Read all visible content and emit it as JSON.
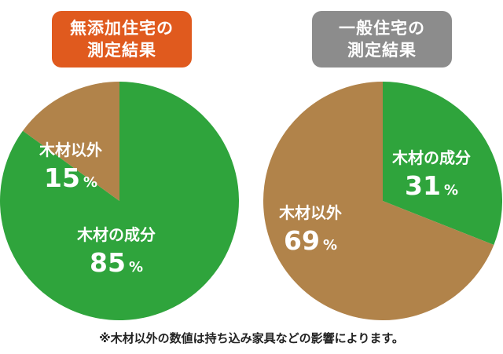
{
  "colors": {
    "wood": "#2fa43c",
    "non_wood": "#b1834a",
    "title_left_bg": "#e05a1e",
    "title_right_bg": "#8c8c8c",
    "label_text": "#ffffff"
  },
  "chart_data": [
    {
      "type": "pie",
      "title_line1": "無添加住宅の",
      "title_line2": "測定結果",
      "slices": [
        {
          "name": "木材の成分",
          "value": 85,
          "value_label": "85",
          "unit": "%",
          "color": "#2fa43c"
        },
        {
          "name": "木材以外",
          "value": 15,
          "value_label": "15",
          "unit": "%",
          "color": "#b1834a"
        }
      ]
    },
    {
      "type": "pie",
      "title_line1": "一般住宅の",
      "title_line2": "測定結果",
      "slices": [
        {
          "name": "木材の成分",
          "value": 31,
          "value_label": "31",
          "unit": "%",
          "color": "#2fa43c"
        },
        {
          "name": "木材以外",
          "value": 69,
          "value_label": "69",
          "unit": "%",
          "color": "#b1834a"
        }
      ]
    }
  ],
  "footnote": "※木材以外の数値は持ち込み家具などの影響によります。"
}
